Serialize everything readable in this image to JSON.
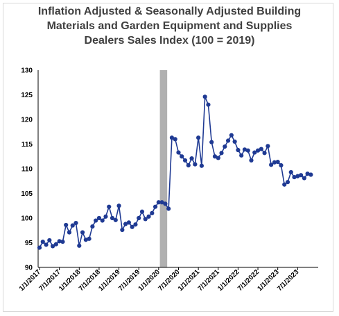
{
  "chart_data": {
    "type": "line",
    "title_lines": [
      "Inflation Adjusted & Seasonally Adjusted Building",
      "Materials and Garden Equipment and Supplies",
      "Dealers Sales Index (100 = 2019)"
    ],
    "ylim": [
      90,
      130
    ],
    "y_ticks": [
      "90",
      "95",
      "100",
      "105",
      "110",
      "115",
      "120",
      "125",
      "130"
    ],
    "x_tick_labels": [
      "1/1/2017",
      "7/1/2017",
      "1/1/2018",
      "7/1/2018",
      "1/1/2019",
      "7/1/2019",
      "1/1/2020",
      "7/1/2020",
      "1/1/2021",
      "7/1/2021",
      "1/1/2022",
      "7/1/2022",
      "1/1/2023",
      "7/1/2023"
    ],
    "shaded_region": {
      "start": "2/1/2020",
      "end": "4/1/2020",
      "color": "#b0b0b0"
    },
    "series": [
      {
        "color": "#1f3a93",
        "x_start": "1/1/2017",
        "frequency": "monthly",
        "values": [
          94.0,
          95.2,
          94.6,
          95.5,
          94.3,
          94.7,
          95.3,
          95.2,
          98.6,
          97.1,
          98.5,
          99.0,
          94.4,
          97.1,
          95.6,
          95.8,
          98.3,
          99.5,
          100.0,
          99.5,
          100.3,
          102.3,
          100.0,
          99.6,
          102.5,
          97.6,
          98.8,
          99.1,
          98.2,
          98.7,
          100.0,
          101.3,
          99.8,
          100.3,
          101.0,
          102.3,
          103.2,
          103.2,
          102.9,
          101.9,
          116.3,
          116.0,
          113.3,
          112.5,
          111.7,
          110.7,
          112.1,
          110.9,
          116.3,
          110.6,
          124.6,
          123.0,
          115.4,
          112.5,
          112.2,
          113.2,
          114.5,
          115.7,
          116.8,
          115.5,
          113.8,
          112.7,
          113.9,
          113.7,
          111.7,
          113.3,
          113.7,
          114.0,
          113.2,
          114.6,
          110.8,
          111.3,
          111.4,
          110.7,
          106.8,
          107.3,
          109.3,
          108.3,
          108.5,
          108.7,
          108.1,
          109.0,
          108.8
        ]
      }
    ]
  }
}
